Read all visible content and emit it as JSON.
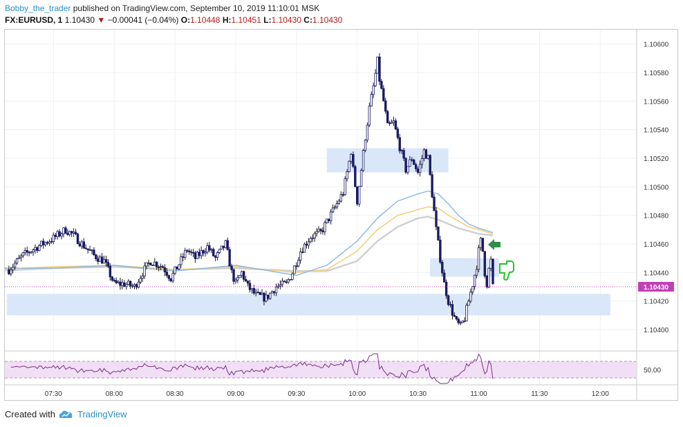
{
  "header": {
    "author": "Bobby_the_trader",
    "published": "published on TradingView.com, September 10, 2019 11:10:01 MSK"
  },
  "symbol": {
    "name": "FX:EURUSD, 1",
    "price": "1.10430",
    "change": "−0.00041 (−0.04%)",
    "o_label": "O:",
    "o_value": "1.10448",
    "h_label": "H:",
    "h_value": "1.10451",
    "l_label": "L:",
    "l_value": "1.10430",
    "c_label": "C:",
    "c_value": "1.10430"
  },
  "colors": {
    "candle_up": "#ffffff",
    "candle_down": "#1a1a66",
    "wick": "#1a1a1a",
    "zone": "#d6e4f7",
    "ma_blue": "#8ab6e6",
    "ma_orange": "#f5cf7a",
    "ma_grey": "#d0d0d0",
    "current_price_bg": "#c13fb4",
    "rsi_line": "#7a2f8a",
    "rsi_band": "#f1dff5",
    "arrow_green": "#2f8f4a",
    "thumb_green": "#22c528"
  },
  "icons": {
    "arrow": "left-pointing-arrow-icon",
    "thumb": "thumbs-down-icon",
    "logo": "tradingview-cloud-icon"
  },
  "chart_data": {
    "type": "candlestick",
    "x_ticks": [
      "07:30",
      "08:00",
      "08:30",
      "09:00",
      "09:30",
      "10:00",
      "10:30",
      "11:00",
      "11:30",
      "12:00"
    ],
    "y_ticks": [
      "1.10400",
      "1.10420",
      "1.10440",
      "1.10460",
      "1.10480",
      "1.10500",
      "1.10520",
      "1.10540",
      "1.10560",
      "1.10580",
      "1.10600"
    ],
    "ylim": [
      1.10385,
      1.1061
    ],
    "current_price": "1.10430",
    "rsi_level": "50.00",
    "zones": [
      {
        "t1": "07:07",
        "t2": "12:05",
        "low": 1.1041,
        "high": 1.10425
      },
      {
        "t1": "09:45",
        "t2": "10:45",
        "low": 1.1051,
        "high": 1.10527
      },
      {
        "t1": "10:36",
        "t2": "11:10",
        "low": 1.10437,
        "high": 1.1045
      }
    ],
    "price_path": [
      [
        "07:08",
        1.10442
      ],
      [
        "07:15",
        1.10452
      ],
      [
        "07:22",
        1.10458
      ],
      [
        "07:30",
        1.10464
      ],
      [
        "07:36",
        1.1047
      ],
      [
        "07:40",
        1.10466
      ],
      [
        "07:44",
        1.1046
      ],
      [
        "07:50",
        1.10452
      ],
      [
        "07:55",
        1.10448
      ],
      [
        "08:00",
        1.10432
      ],
      [
        "08:05",
        1.10432
      ],
      [
        "08:10",
        1.1043
      ],
      [
        "08:14",
        1.1044
      ],
      [
        "08:18",
        1.10448
      ],
      [
        "08:24",
        1.10444
      ],
      [
        "08:28",
        1.10436
      ],
      [
        "08:32",
        1.10446
      ],
      [
        "08:36",
        1.10456
      ],
      [
        "08:40",
        1.1045
      ],
      [
        "08:46",
        1.10458
      ],
      [
        "08:50",
        1.1045
      ],
      [
        "08:55",
        1.1046
      ],
      [
        "08:58",
        1.1044
      ],
      [
        "09:00",
        1.10432
      ],
      [
        "09:03",
        1.1044
      ],
      [
        "09:06",
        1.1043
      ],
      [
        "09:10",
        1.10424
      ],
      [
        "09:15",
        1.10422
      ],
      [
        "09:20",
        1.1043
      ],
      [
        "09:25",
        1.10432
      ],
      [
        "09:28",
        1.1044
      ],
      [
        "09:32",
        1.10455
      ],
      [
        "09:37",
        1.10465
      ],
      [
        "09:42",
        1.10468
      ],
      [
        "09:46",
        1.10478
      ],
      [
        "09:50",
        1.10488
      ],
      [
        "09:53",
        1.10496
      ],
      [
        "09:55",
        1.1051
      ],
      [
        "09:57",
        1.10525
      ],
      [
        "09:58",
        1.10512
      ],
      [
        "10:00",
        1.1049
      ],
      [
        "10:02",
        1.10512
      ],
      [
        "10:04",
        1.10535
      ],
      [
        "10:06",
        1.10555
      ],
      [
        "10:08",
        1.1057
      ],
      [
        "10:10",
        1.10588
      ],
      [
        "10:11",
        1.10575
      ],
      [
        "10:13",
        1.1056
      ],
      [
        "10:15",
        1.10542
      ],
      [
        "10:18",
        1.10545
      ],
      [
        "10:21",
        1.10528
      ],
      [
        "10:24",
        1.10512
      ],
      [
        "10:27",
        1.1052
      ],
      [
        "10:30",
        1.1051
      ],
      [
        "10:33",
        1.10525
      ],
      [
        "10:35",
        1.1052
      ],
      [
        "10:37",
        1.10495
      ],
      [
        "10:39",
        1.1047
      ],
      [
        "10:41",
        1.1045
      ],
      [
        "10:43",
        1.10432
      ],
      [
        "10:45",
        1.1042
      ],
      [
        "10:47",
        1.10412
      ],
      [
        "10:49",
        1.10405
      ],
      [
        "10:51",
        1.10402
      ],
      [
        "10:53",
        1.10408
      ],
      [
        "10:55",
        1.1042
      ],
      [
        "10:57",
        1.10432
      ],
      [
        "10:59",
        1.10445
      ],
      [
        "11:00",
        1.10455
      ],
      [
        "11:01",
        1.10462
      ],
      [
        "11:02",
        1.10455
      ],
      [
        "11:03",
        1.1044
      ],
      [
        "11:04",
        1.10432
      ],
      [
        "11:05",
        1.10442
      ],
      [
        "11:06",
        1.10448
      ],
      [
        "11:07",
        1.1043
      ]
    ],
    "ma_blue": [
      [
        "07:00",
        1.10443
      ],
      [
        "07:30",
        1.10443
      ],
      [
        "08:00",
        1.10445
      ],
      [
        "08:30",
        1.10441
      ],
      [
        "09:00",
        1.10445
      ],
      [
        "09:30",
        1.10438
      ],
      [
        "09:45",
        1.10445
      ],
      [
        "10:00",
        1.10462
      ],
      [
        "10:10",
        1.10478
      ],
      [
        "10:20",
        1.1049
      ],
      [
        "10:30",
        1.10495
      ],
      [
        "10:35",
        1.10497
      ],
      [
        "10:40",
        1.10495
      ],
      [
        "10:45",
        1.10488
      ],
      [
        "10:50",
        1.1048
      ],
      [
        "10:55",
        1.10474
      ],
      [
        "11:00",
        1.10471
      ],
      [
        "11:07",
        1.10468
      ]
    ],
    "ma_orange": [
      [
        "07:00",
        1.10442
      ],
      [
        "07:30",
        1.10444
      ],
      [
        "08:00",
        1.10445
      ],
      [
        "08:30",
        1.10442
      ],
      [
        "09:00",
        1.10444
      ],
      [
        "09:30",
        1.1044
      ],
      [
        "09:45",
        1.10442
      ],
      [
        "10:00",
        1.10455
      ],
      [
        "10:10",
        1.1047
      ],
      [
        "10:20",
        1.1048
      ],
      [
        "10:30",
        1.10484
      ],
      [
        "10:35",
        1.10486
      ],
      [
        "10:40",
        1.10485
      ],
      [
        "10:45",
        1.1048
      ],
      [
        "10:50",
        1.10476
      ],
      [
        "10:55",
        1.10472
      ],
      [
        "11:00",
        1.1047
      ],
      [
        "11:07",
        1.10467
      ]
    ],
    "ma_grey": [
      [
        "07:00",
        1.10441
      ],
      [
        "07:30",
        1.10443
      ],
      [
        "08:00",
        1.10444
      ],
      [
        "08:30",
        1.10442
      ],
      [
        "09:00",
        1.10443
      ],
      [
        "09:30",
        1.10441
      ],
      [
        "09:45",
        1.10441
      ],
      [
        "10:00",
        1.10448
      ],
      [
        "10:10",
        1.10462
      ],
      [
        "10:20",
        1.10472
      ],
      [
        "10:30",
        1.10478
      ],
      [
        "10:35",
        1.10479
      ],
      [
        "10:40",
        1.10477
      ],
      [
        "10:45",
        1.10474
      ],
      [
        "10:50",
        1.10471
      ],
      [
        "10:55",
        1.10469
      ],
      [
        "11:00",
        1.10467
      ],
      [
        "11:07",
        1.10466
      ]
    ]
  },
  "footer": {
    "created_with": "Created with",
    "brand": "TradingView"
  }
}
